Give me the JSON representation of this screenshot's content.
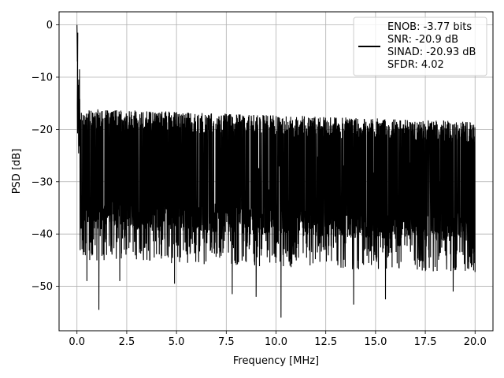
{
  "chart_data": {
    "type": "line",
    "title": "",
    "xlabel": "Frequency [MHz]",
    "ylabel": "PSD [dB]",
    "xlim": [
      -0.9,
      20.9
    ],
    "ylim": [
      -58.5,
      2.5
    ],
    "x_ticks": [
      0.0,
      2.5,
      5.0,
      7.5,
      10.0,
      12.5,
      15.0,
      17.5,
      20.0
    ],
    "x_tick_labels": [
      "0.0",
      "2.5",
      "5.0",
      "7.5",
      "10.0",
      "12.5",
      "15.0",
      "17.5",
      "20.0"
    ],
    "y_ticks": [
      0,
      -10,
      -20,
      -30,
      -40,
      -50
    ],
    "y_tick_labels": [
      "0",
      "−10",
      "−20",
      "−30",
      "−40",
      "−50"
    ],
    "grid": true,
    "legend_position": "top-right",
    "series": [
      {
        "name": "ENOB: -3.77 bits\nSNR: -20.9 dB\nSINAD: -20.93 dB\nSFDR: 4.02",
        "legend_lines": [
          "ENOB: -3.77 bits",
          "SNR: -20.9 dB",
          "SINAD: -20.93 dB",
          "SFDR: 4.02"
        ],
        "color": "#000000",
        "x_range": [
          0,
          20
        ],
        "noise_floor_approx": {
          "upper_db": -17,
          "lower_db": -37
        },
        "peak": {
          "x": 0.0,
          "y": 0.0
        },
        "notable_dips": [
          {
            "x": 0.5,
            "y": -49
          },
          {
            "x": 1.1,
            "y": -54.5
          },
          {
            "x": 2.15,
            "y": -49
          },
          {
            "x": 4.9,
            "y": -49.5
          },
          {
            "x": 7.8,
            "y": -51.5
          },
          {
            "x": 9.0,
            "y": -52
          },
          {
            "x": 10.25,
            "y": -56
          },
          {
            "x": 13.9,
            "y": -53.5
          },
          {
            "x": 15.5,
            "y": -52.5
          },
          {
            "x": 18.9,
            "y": -51
          }
        ]
      }
    ]
  }
}
